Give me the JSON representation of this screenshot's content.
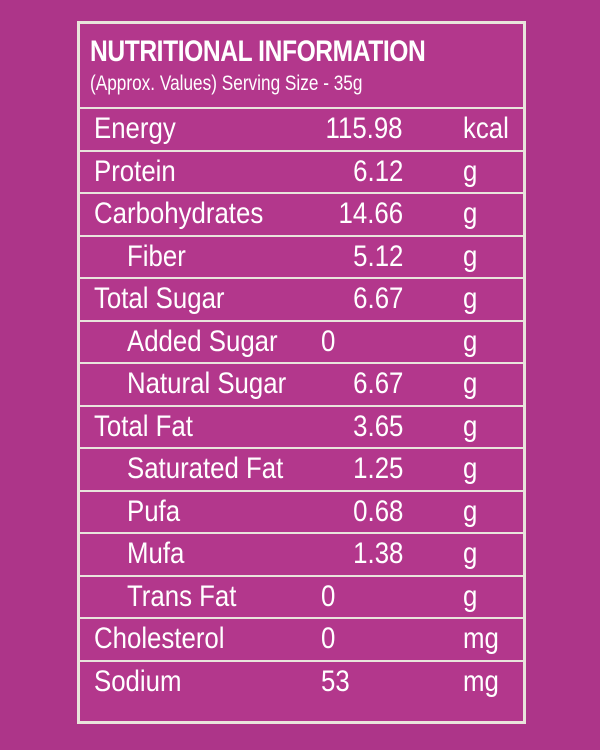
{
  "label": {
    "title": "NUTRITIONAL INFORMATION",
    "subtitle": "(Approx. Values) Serving Size - 35g"
  },
  "rows": [
    {
      "name": "Energy",
      "value": "115.98",
      "unit": "kcal",
      "indent": false
    },
    {
      "name": "Protein",
      "value": "6.12",
      "unit": "g",
      "indent": false
    },
    {
      "name": "Carbohydrates",
      "value": "14.66",
      "unit": "g",
      "indent": false
    },
    {
      "name": "Fiber",
      "value": "5.12",
      "unit": "g",
      "indent": true
    },
    {
      "name": "Total Sugar",
      "value": "6.67",
      "unit": "g",
      "indent": false
    },
    {
      "name": "Added Sugar",
      "value": "0",
      "unit": "g",
      "indent": true
    },
    {
      "name": "Natural Sugar",
      "value": "6.67",
      "unit": "g",
      "indent": true
    },
    {
      "name": "Total Fat",
      "value": "3.65",
      "unit": "g",
      "indent": false
    },
    {
      "name": "Saturated Fat",
      "value": "1.25",
      "unit": "g",
      "indent": true
    },
    {
      "name": "Pufa",
      "value": "0.68",
      "unit": "g",
      "indent": true
    },
    {
      "name": "Mufa",
      "value": "1.38",
      "unit": "g",
      "indent": true
    },
    {
      "name": "Trans Fat",
      "value": "0",
      "unit": "g",
      "indent": true
    },
    {
      "name": "Cholesterol",
      "value": "0",
      "unit": "mg",
      "indent": false
    },
    {
      "name": "Sodium",
      "value": "53",
      "unit": "mg",
      "indent": false
    }
  ],
  "colors": {
    "background": "#ad3589",
    "border": "#e9e4dc",
    "text": "#ffffff"
  }
}
